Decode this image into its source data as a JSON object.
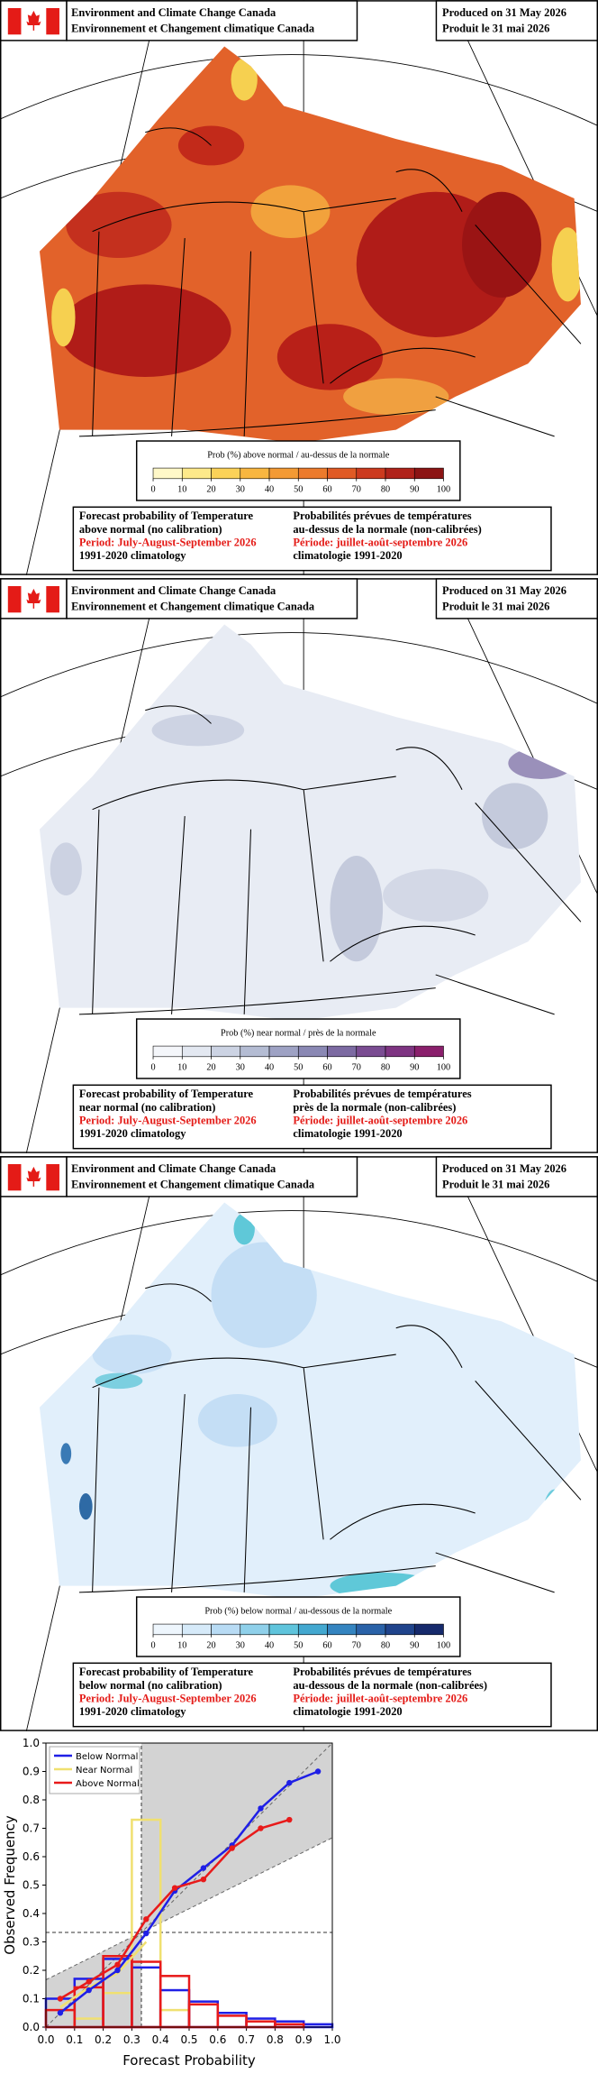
{
  "panels": [
    {
      "header": {
        "org_en": "Environment and Climate Change Canada",
        "org_fr": "Environnement et Changement climatique Canada",
        "produced_en": "Produced on 31 May 2026",
        "produced_fr": "Produit le 31 mai 2026"
      },
      "colorbar": {
        "label": "Prob (%) above normal / au-dessus de la normale",
        "ticks": [
          0,
          10,
          20,
          30,
          40,
          50,
          60,
          70,
          80,
          90,
          100
        ],
        "colors": [
          "#fff8c8",
          "#fde98a",
          "#fbd258",
          "#f8b640",
          "#f39a34",
          "#ec7a2c",
          "#e05a24",
          "#cc3a1e",
          "#b0221a",
          "#8c1414"
        ]
      },
      "caption": {
        "en": [
          "Forecast probability of Temperature",
          "above normal (no calibration)",
          "Period: July-August-September 2026",
          "1991-2020 climatology"
        ],
        "fr": [
          "Probabilités prévues de températures",
          "au-dessus de la normale (non-calibrées)",
          "Période: juillet-août-septembre 2026",
          "climatologie 1991-2020"
        ]
      }
    },
    {
      "header": {
        "org_en": "Environment and Climate Change Canada",
        "org_fr": "Environnement et Changement climatique Canada",
        "produced_en": "Produced on 31 May 2026",
        "produced_fr": "Produit le 31 mai 2026"
      },
      "colorbar": {
        "label": "Prob (%) near normal / près de la normale",
        "ticks": [
          0,
          10,
          20,
          30,
          40,
          50,
          60,
          70,
          80,
          90,
          100
        ],
        "colors": [
          "#f4f6fa",
          "#e3e8f1",
          "#ccd3e3",
          "#b4bcd3",
          "#9ea2c4",
          "#8a88b4",
          "#7c6aa2",
          "#7a4c92",
          "#7e3482",
          "#8a1f6c"
        ]
      },
      "caption": {
        "en": [
          "Forecast probability of Temperature",
          "near normal (no calibration)",
          "Period: July-August-September 2026",
          "1991-2020 climatology"
        ],
        "fr": [
          "Probabilités prévues de températures",
          "près de la normale (non-calibrées)",
          "Période: juillet-août-septembre 2026",
          "climatologie 1991-2020"
        ]
      }
    },
    {
      "header": {
        "org_en": "Environment and Climate Change Canada",
        "org_fr": "Environnement et Changement climatique Canada",
        "produced_en": "Produced on 31 May 2026",
        "produced_fr": "Produit le 31 mai 2026"
      },
      "colorbar": {
        "label": "Prob (%) below normal / au-dessous de la normale",
        "ticks": [
          0,
          10,
          20,
          30,
          40,
          50,
          60,
          70,
          80,
          90,
          100
        ],
        "colors": [
          "#eef6fd",
          "#d6eaf9",
          "#b8dbf4",
          "#8fd0ea",
          "#5fc4dc",
          "#43a8d0",
          "#3484c0",
          "#2a62a8",
          "#20448c",
          "#162a6c"
        ]
      },
      "caption": {
        "en": [
          "Forecast probability of Temperature",
          "below normal (no calibration)",
          "Period: July-August-September 2026",
          "1991-2020 climatology"
        ],
        "fr": [
          "Probabilités prévues de températures",
          "au-dessous de la normale (non-calibrées)",
          "Période: juillet-août-septembre 2026",
          "climatologie 1991-2020"
        ]
      }
    }
  ],
  "chart_data": {
    "type": "reliability",
    "xlabel": "Forecast Probability",
    "ylabel": "Observed Frequency",
    "xlim": [
      0,
      1
    ],
    "ylim": [
      0,
      1
    ],
    "xticks": [
      {
        "value": 0,
        "label": "0.0"
      },
      0.1,
      0.2,
      0.3,
      0.4,
      0.5,
      0.6,
      0.7,
      0.8,
      0.9,
      {
        "value": 1,
        "label": "1.0"
      }
    ],
    "yticks": [
      {
        "value": 0,
        "label": "0.0"
      },
      0.1,
      0.2,
      0.3,
      0.4,
      0.5,
      0.6,
      0.7,
      0.8,
      0.9,
      {
        "value": 1,
        "label": "1.0"
      }
    ],
    "x": [
      0.05,
      0.15,
      0.25,
      0.35,
      0.45,
      0.55,
      0.65,
      0.75,
      0.85,
      0.95
    ],
    "bins": [
      0,
      0.1,
      0.2,
      0.3,
      0.4,
      0.5,
      0.6,
      0.7,
      0.8,
      0.9,
      1
    ],
    "legend": "upper left",
    "series": [
      {
        "name": "Below Normal",
        "color": "#1f1fe6",
        "values": [
          0.05,
          0.13,
          0.2,
          0.33,
          0.48,
          0.56,
          0.64,
          0.77,
          0.86,
          0.9
        ],
        "frequencies": [
          0.1,
          0.17,
          0.24,
          0.21,
          0.13,
          0.09,
          0.05,
          0.03,
          0.02,
          0.01
        ]
      },
      {
        "name": "Near  Normal",
        "color": "#f0e070",
        "values": [
          0.07,
          0.14,
          0.19,
          0.3,
          null,
          null,
          null,
          null,
          null,
          null
        ],
        "frequencies": [
          0.0,
          0.03,
          0.12,
          0.73,
          0.06,
          0.0,
          0.0,
          0.0,
          0.0,
          0.0
        ]
      },
      {
        "name": "Above Normal",
        "color": "#e81a1a",
        "values": [
          0.1,
          0.16,
          0.22,
          0.38,
          0.49,
          0.52,
          0.63,
          0.7,
          0.73,
          null
        ],
        "frequencies": [
          0.06,
          0.14,
          0.25,
          0.23,
          0.18,
          0.08,
          0.04,
          0.02,
          0.01,
          0.0
        ]
      }
    ]
  }
}
